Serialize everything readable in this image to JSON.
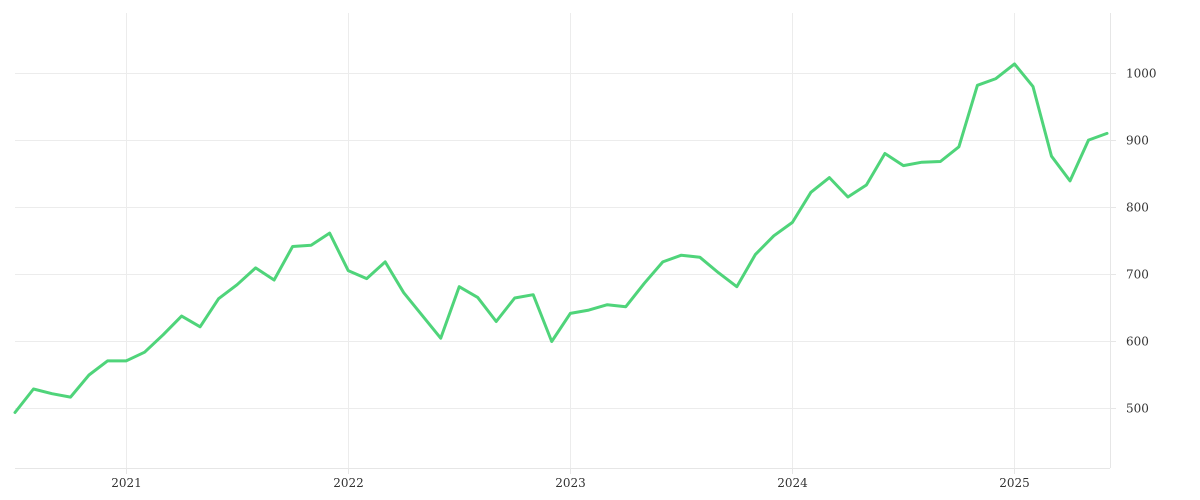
{
  "chart_data": {
    "type": "line",
    "x_axis": {
      "type": "date",
      "range": [
        "2020-07",
        "2025-06"
      ],
      "ticks": [
        "2021",
        "2022",
        "2023",
        "2024",
        "2025"
      ]
    },
    "y_axis": {
      "position": "right",
      "range": [
        410,
        1090
      ],
      "ticks": [
        500,
        600,
        700,
        800,
        900,
        1000
      ]
    },
    "grid": true,
    "legend": "none",
    "colors": {
      "line": "#4fd47a",
      "grid": "#ececec",
      "text": "#333333"
    },
    "series": [
      {
        "x": [
          "2020-07",
          "2020-08",
          "2020-09",
          "2020-10",
          "2020-11",
          "2020-12",
          "2021-01",
          "2021-02",
          "2021-03",
          "2021-04",
          "2021-05",
          "2021-06",
          "2021-07",
          "2021-08",
          "2021-09",
          "2021-10",
          "2021-11",
          "2021-12",
          "2022-01",
          "2022-02",
          "2022-03",
          "2022-04",
          "2022-05",
          "2022-06",
          "2022-07",
          "2022-08",
          "2022-09",
          "2022-10",
          "2022-11",
          "2022-12",
          "2023-01",
          "2023-02",
          "2023-03",
          "2023-04",
          "2023-05",
          "2023-06",
          "2023-07",
          "2023-08",
          "2023-09",
          "2023-10",
          "2023-11",
          "2023-12",
          "2024-01",
          "2024-02",
          "2024-03",
          "2024-04",
          "2024-05",
          "2024-06",
          "2024-07",
          "2024-08",
          "2024-09",
          "2024-10",
          "2024-11",
          "2024-12",
          "2025-01",
          "2025-02",
          "2025-03",
          "2025-04",
          "2025-05",
          "2025-06"
        ],
        "y": [
          493,
          528,
          521,
          516,
          549,
          570,
          570,
          583,
          609,
          637,
          621,
          663,
          684,
          709,
          691,
          741,
          743,
          761,
          705,
          693,
          718,
          672,
          638,
          604,
          681,
          665,
          629,
          664,
          669,
          599,
          641,
          646,
          654,
          651,
          686,
          718,
          728,
          725,
          702,
          681,
          729,
          757,
          777,
          822,
          844,
          815,
          833,
          880,
          862,
          867,
          868,
          890,
          982,
          992,
          1014,
          980,
          876,
          839,
          900,
          910
        ]
      }
    ]
  }
}
